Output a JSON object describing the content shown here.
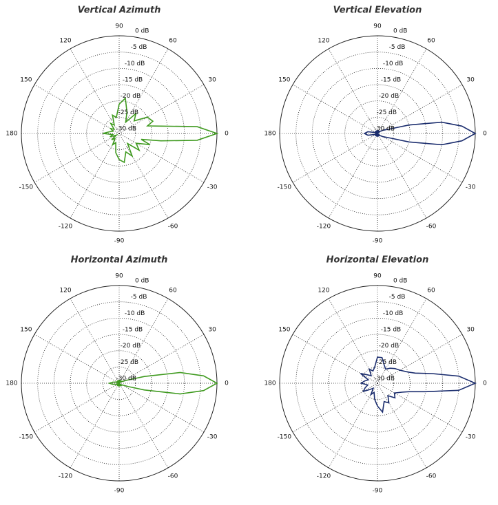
{
  "chart_data": [
    {
      "type": "polar",
      "title": "Vertical Azimuth",
      "color": "#3f9a1f",
      "grid": true,
      "theta": [
        -180,
        -170,
        -160,
        -150,
        -140,
        -130,
        -120,
        -110,
        -100,
        -90,
        -80,
        -70,
        -60,
        -50,
        -40,
        -30,
        -20,
        -15,
        -10,
        -5,
        0,
        5,
        10,
        15,
        20,
        30,
        40,
        50,
        60,
        70,
        80,
        90,
        100,
        110,
        120,
        130,
        140,
        150,
        160,
        170
      ],
      "values": [
        -25,
        -28,
        -27,
        -29,
        -27,
        -28,
        -26,
        -27,
        -24,
        -22,
        -21,
        -24,
        -22,
        -26,
        -22,
        -24,
        -20,
        -23,
        -17,
        -6,
        0,
        -6,
        -17,
        -21,
        -19,
        -20,
        -24,
        -22,
        -26,
        -23,
        -19,
        -21,
        -25,
        -24,
        -27,
        -26,
        -28,
        -27,
        -28,
        -27
      ],
      "rlim": [
        -30,
        0
      ],
      "rticks": [
        {
          "value": 0,
          "label": "0 dB"
        },
        {
          "value": -5,
          "label": "-5 dB"
        },
        {
          "value": -10,
          "label": "-10 dB"
        },
        {
          "value": -15,
          "label": "-15 dB"
        },
        {
          "value": -20,
          "label": "-20 dB"
        },
        {
          "value": -25,
          "label": "-25 dB"
        },
        {
          "value": -30,
          "label": "-30 dB"
        }
      ],
      "thetaticks": [
        0,
        30,
        60,
        90,
        120,
        150,
        180,
        -150,
        -120,
        -90,
        -60,
        -30
      ]
    },
    {
      "type": "polar",
      "title": "Vertical Elevation",
      "color": "#1b2d6e",
      "grid": true,
      "theta": [
        -180,
        -170,
        -160,
        -150,
        -140,
        -130,
        -120,
        -110,
        -100,
        -90,
        -80,
        -70,
        -60,
        -50,
        -40,
        -30,
        -20,
        -15,
        -10,
        -5,
        0,
        5,
        10,
        15,
        20,
        30,
        40,
        50,
        60,
        70,
        80,
        90,
        100,
        110,
        120,
        130,
        140,
        150,
        160,
        170
      ],
      "values": [
        -26,
        -27,
        -29,
        -30,
        -29,
        -30,
        -29,
        -30,
        -29,
        -30,
        -29,
        -30,
        -29,
        -30,
        -29,
        -28,
        -26,
        -20,
        -10,
        -4,
        0,
        -4,
        -10,
        -20,
        -26,
        -28,
        -29,
        -30,
        -29,
        -30,
        -29,
        -30,
        -29,
        -30,
        -29,
        -30,
        -29,
        -30,
        -29,
        -27
      ],
      "rlim": [
        -30,
        0
      ],
      "rticks": [
        {
          "value": 0,
          "label": "0 dB"
        },
        {
          "value": -5,
          "label": "-5 dB"
        },
        {
          "value": -10,
          "label": "-10 dB"
        },
        {
          "value": -15,
          "label": "-15 dB"
        },
        {
          "value": -20,
          "label": "-20 dB"
        },
        {
          "value": -25,
          "label": "-25 dB"
        },
        {
          "value": -30,
          "label": "-30 dB"
        }
      ],
      "thetaticks": [
        0,
        30,
        60,
        90,
        120,
        150,
        180,
        -150,
        -120,
        -90,
        -60,
        -30
      ]
    },
    {
      "type": "polar",
      "title": "Horizontal Azimuth",
      "color": "#3f9a1f",
      "grid": true,
      "theta": [
        -180,
        -170,
        -160,
        -150,
        -140,
        -130,
        -120,
        -110,
        -100,
        -90,
        -80,
        -70,
        -60,
        -50,
        -40,
        -30,
        -20,
        -15,
        -10,
        -5,
        0,
        5,
        10,
        15,
        20,
        30,
        40,
        50,
        60,
        70,
        80,
        90,
        100,
        110,
        120,
        130,
        140,
        150,
        160,
        170
      ],
      "values": [
        -27,
        -28,
        -29,
        -30,
        -29,
        -30,
        -29,
        -30,
        -29,
        -30,
        -29,
        -30,
        -29,
        -30,
        -29,
        -29,
        -27,
        -22,
        -11,
        -4,
        0,
        -4,
        -11,
        -22,
        -27,
        -29,
        -29,
        -30,
        -29,
        -30,
        -29,
        -30,
        -29,
        -30,
        -29,
        -30,
        -29,
        -30,
        -29,
        -28
      ],
      "rlim": [
        -30,
        0
      ],
      "rticks": [
        {
          "value": 0,
          "label": "0 dB"
        },
        {
          "value": -5,
          "label": "-5 dB"
        },
        {
          "value": -10,
          "label": "-10 dB"
        },
        {
          "value": -15,
          "label": "-15 dB"
        },
        {
          "value": -20,
          "label": "-20 dB"
        },
        {
          "value": -25,
          "label": "-25 dB"
        },
        {
          "value": -30,
          "label": "-30 dB"
        }
      ],
      "thetaticks": [
        0,
        30,
        60,
        90,
        120,
        150,
        180,
        -150,
        -120,
        -90,
        -60,
        -30
      ]
    },
    {
      "type": "polar",
      "title": "Horizontal Elevation",
      "color": "#1b2d6e",
      "grid": true,
      "theta": [
        -180,
        -170,
        -160,
        -150,
        -140,
        -130,
        -120,
        -110,
        -100,
        -90,
        -80,
        -70,
        -60,
        -50,
        -40,
        -30,
        -20,
        -15,
        -10,
        -5,
        0,
        5,
        10,
        15,
        20,
        30,
        40,
        50,
        60,
        70,
        80,
        90,
        100,
        110,
        120,
        130,
        140,
        150,
        160,
        170
      ],
      "values": [
        -25,
        -27,
        -26,
        -25,
        -27,
        -28,
        -26,
        -27,
        -25,
        -23,
        -21,
        -24,
        -23,
        -25,
        -23,
        -24,
        -22,
        -20,
        -15,
        -5,
        0,
        -5,
        -13,
        -18,
        -20,
        -22,
        -23,
        -24,
        -25,
        -24,
        -22,
        -22,
        -25,
        -26,
        -25,
        -27,
        -26,
        -24,
        -27,
        -26
      ],
      "rlim": [
        -30,
        0
      ],
      "rticks": [
        {
          "value": 0,
          "label": "0 dB"
        },
        {
          "value": -5,
          "label": "-5 dB"
        },
        {
          "value": -10,
          "label": "-10 dB"
        },
        {
          "value": -15,
          "label": "-15 dB"
        },
        {
          "value": -20,
          "label": "-20 dB"
        },
        {
          "value": -25,
          "label": "-25 dB"
        },
        {
          "value": -30,
          "label": "-30 dB"
        }
      ],
      "thetaticks": [
        0,
        30,
        60,
        90,
        120,
        150,
        180,
        -150,
        -120,
        -90,
        -60,
        -30
      ]
    }
  ]
}
